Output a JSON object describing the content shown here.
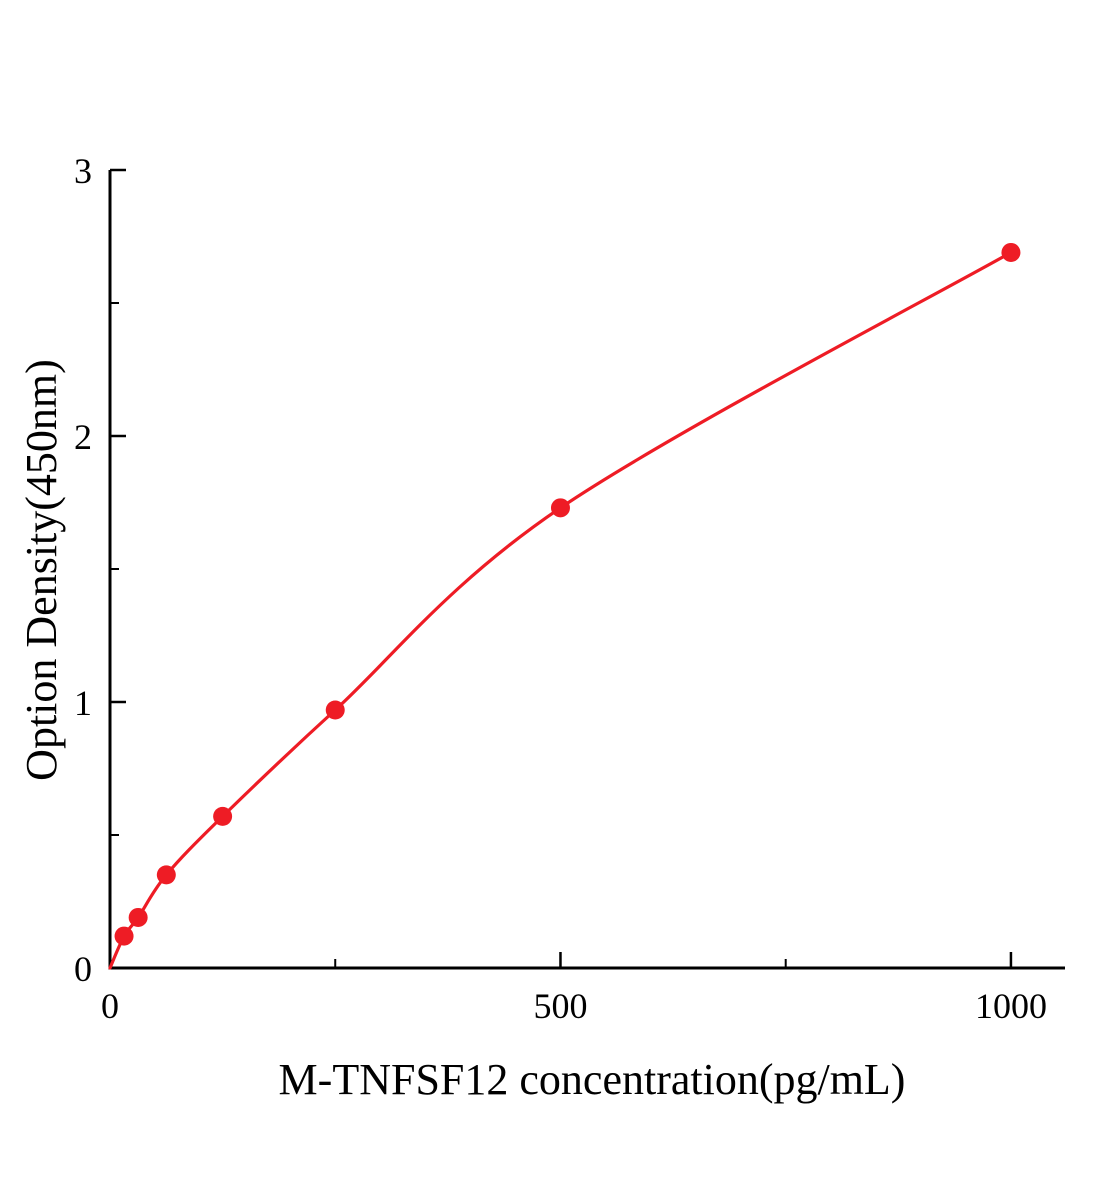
{
  "chart_data": {
    "type": "scatter",
    "title": "",
    "xlabel": "M-TNFSF12 concentration(pg/mL)",
    "ylabel": "Option Density(450nm)",
    "series": [
      {
        "name": "standard-curve",
        "x": [
          15.6,
          31.25,
          62.5,
          125,
          250,
          500,
          1000
        ],
        "y": [
          0.12,
          0.19,
          0.35,
          0.57,
          0.97,
          1.73,
          2.69
        ]
      }
    ],
    "fit_curve_starts_at_origin": true,
    "xlim": [
      0,
      1060
    ],
    "ylim": [
      0,
      3
    ],
    "x_ticks_major": [
      0,
      500,
      1000
    ],
    "x_tick_labels": [
      "0",
      "500",
      "1000"
    ],
    "x_ticks_minor": [
      250,
      750
    ],
    "y_ticks_major": [
      0,
      1,
      2,
      3
    ],
    "y_tick_labels": [
      "0",
      "1",
      "2",
      "3"
    ],
    "y_ticks_minor": [
      0.5,
      1.5,
      2.5
    ],
    "grid": false,
    "legend": "none",
    "colors": {
      "point": "#ee1c25",
      "line": "#ee1c25",
      "axis": "#000000",
      "text": "#000000"
    }
  }
}
